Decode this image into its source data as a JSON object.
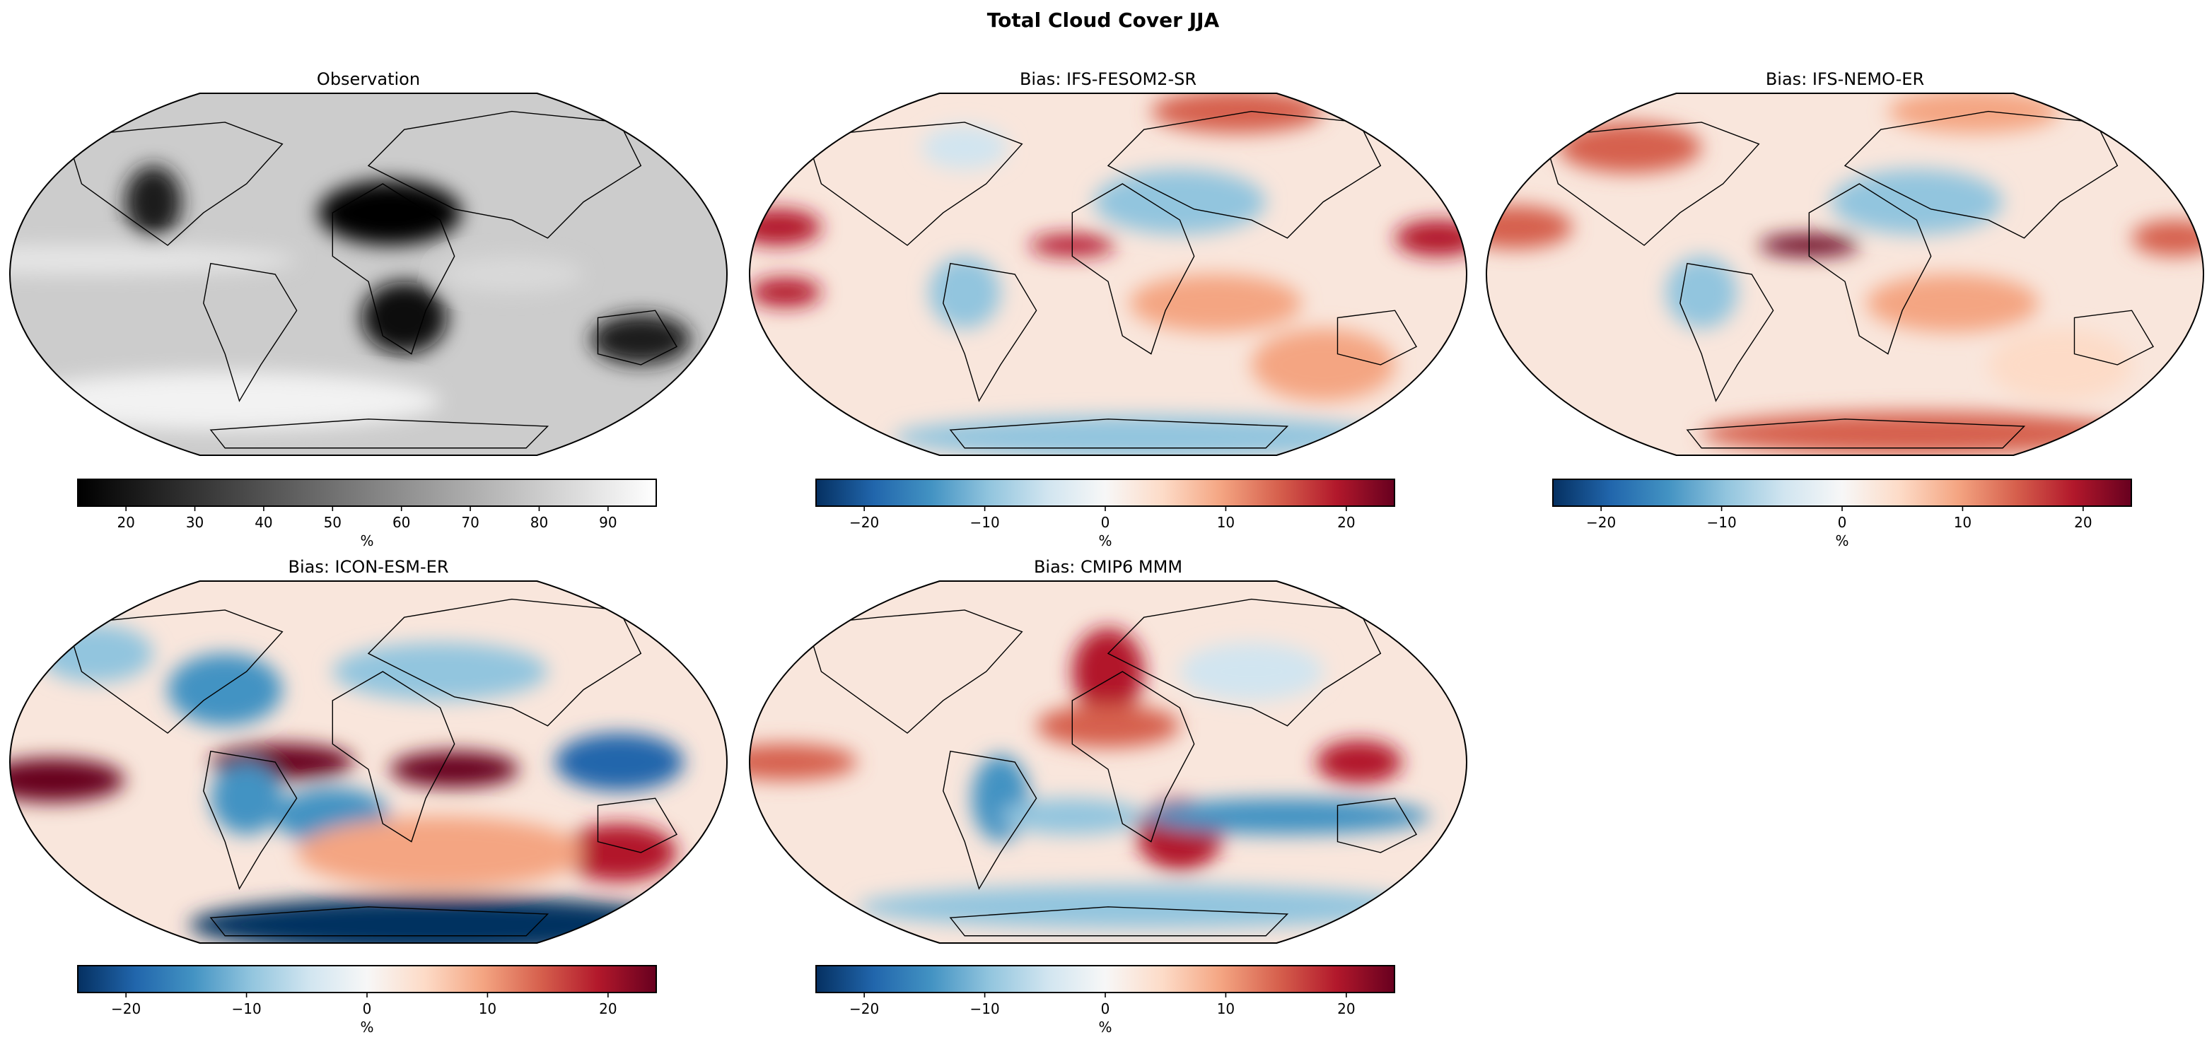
{
  "chart_data": {
    "title": "Total Cloud Cover JJA",
    "type": "heatmap",
    "panels": [
      {
        "title": "Observation",
        "colormap": "gray",
        "colorbar": {
          "label": "%",
          "range": [
            13,
            97
          ],
          "ticks": [
            20,
            30,
            40,
            50,
            60,
            70,
            80,
            90
          ]
        }
      },
      {
        "title": "Bias: IFS-FESOM2-SR",
        "colormap": "RdBu_r",
        "colorbar": {
          "label": "%",
          "range": [
            -24,
            24
          ],
          "ticks": [
            -20,
            -10,
            0,
            10,
            20
          ]
        }
      },
      {
        "title": "Bias: IFS-NEMO-ER",
        "colormap": "RdBu_r",
        "colorbar": {
          "label": "%",
          "range": [
            -24,
            24
          ],
          "ticks": [
            -20,
            -10,
            0,
            10,
            20
          ]
        }
      },
      {
        "title": "Bias: ICON-ESM-ER",
        "colormap": "RdBu_r",
        "colorbar": {
          "label": "%",
          "range": [
            -24,
            24
          ],
          "ticks": [
            -20,
            -10,
            0,
            10,
            20
          ]
        }
      },
      {
        "title": "Bias: CMIP6 MMM",
        "colormap": "RdBu_r",
        "colorbar": {
          "label": "%",
          "range": [
            -24,
            24
          ],
          "ticks": [
            -20,
            -10,
            0,
            10,
            20
          ]
        }
      }
    ],
    "projection": "Robinson",
    "colors": {
      "gray_low": "#000000",
      "gray_high": "#ffffff",
      "rdbu_low": "#053061",
      "rdbu_mid": "#f7f7f7",
      "rdbu_high": "#67001f"
    }
  }
}
